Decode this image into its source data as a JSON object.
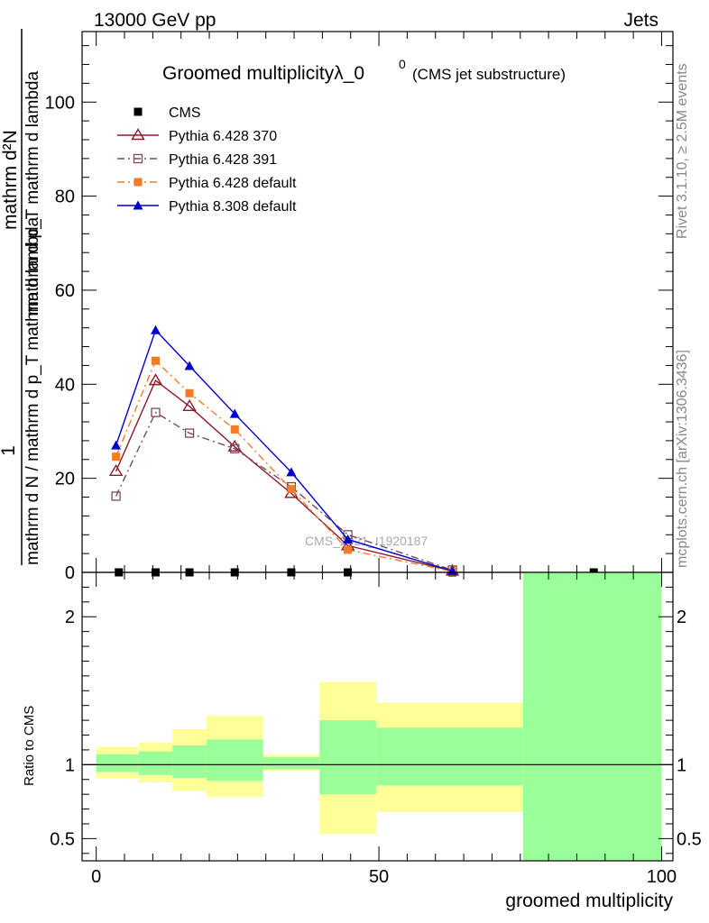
{
  "header": {
    "left": "13000 GeV pp",
    "right": "Jets"
  },
  "side_labels": {
    "rivet": "Rivet 3.1.10, ≥ 2.5M events",
    "mcplots": "mcplots.cern.ch [arXiv:1306.3436]"
  },
  "watermark": "CMS_2021_I1920187",
  "chart_data": [
    {
      "type": "line",
      "title_main": "Groomed multiplicityλ_0",
      "title_sup": "0",
      "title_sub": "(CMS jet substructure)",
      "ylabel_numerator": "1",
      "ylabel_denominator": "mathrm d N / mathrm d p_T mathrm d lambda",
      "ylabel_num_right": "mathrm d²N",
      "ylabel_den_right": "mathrm d p_T mathrm d lambda",
      "xlim": [
        -2.5,
        102
      ],
      "ylim": [
        0,
        115
      ],
      "yticks": [
        0,
        20,
        40,
        60,
        80,
        100
      ],
      "legend_position": "top-left",
      "series": [
        {
          "name": "CMS",
          "color": "#000000",
          "marker": "square-filled",
          "x": [
            4,
            10.5,
            16.5,
            24.5,
            34.5,
            44.5,
            63,
            88
          ],
          "y": [
            0,
            0,
            0,
            0,
            0,
            0,
            0,
            0
          ]
        },
        {
          "name": "Pythia 6.428 370",
          "color": "#8b1a2b",
          "marker": "triangle-open",
          "dash": "",
          "x": [
            3.5,
            10.5,
            16.5,
            24.5,
            34.5,
            44.5,
            63
          ],
          "y": [
            21.5,
            40.8,
            35.3,
            26.7,
            16.8,
            5.7,
            0.3
          ]
        },
        {
          "name": "Pythia 6.428 391",
          "color": "#7a4a5a",
          "marker": "square-open",
          "dash": "8,4,2,4",
          "x": [
            3.5,
            10.5,
            16.5,
            24.5,
            34.5,
            44.5,
            63
          ],
          "y": [
            16.2,
            34,
            29.6,
            26.3,
            18.2,
            8,
            0.5
          ]
        },
        {
          "name": "Pythia 6.428 default",
          "color": "#f27b2a",
          "marker": "square-filled",
          "dash": "8,4,2,4",
          "x": [
            3.5,
            10.5,
            16.5,
            24.5,
            34.5,
            44.5,
            63
          ],
          "y": [
            24.6,
            45,
            38.1,
            30.4,
            17.7,
            4.8,
            0.2
          ]
        },
        {
          "name": "Pythia 8.308 default",
          "color": "#0000cc",
          "marker": "triangle-filled",
          "dash": "",
          "x": [
            3.5,
            10.5,
            16.5,
            24.5,
            34.5,
            44.5,
            63
          ],
          "y": [
            27,
            51.5,
            43.9,
            33.7,
            21.3,
            7,
            0.3
          ]
        }
      ]
    },
    {
      "type": "area",
      "ylabel": "Ratio to CMS",
      "xlabel": "groomed multiplicity",
      "xlim": [
        -2.5,
        102
      ],
      "ylim": [
        0.35,
        2.3
      ],
      "yticks": [
        0.5,
        1,
        2
      ],
      "xticks": [
        0,
        50,
        100
      ],
      "reference_line": 1,
      "bands": [
        {
          "x0": 0,
          "x1": 7.5,
          "inner": [
            0.95,
            1.07
          ],
          "outer": [
            0.91,
            1.12
          ]
        },
        {
          "x0": 7.5,
          "x1": 13.5,
          "inner": [
            0.93,
            1.09
          ],
          "outer": [
            0.88,
            1.15
          ]
        },
        {
          "x0": 13.5,
          "x1": 19.5,
          "inner": [
            0.91,
            1.13
          ],
          "outer": [
            0.82,
            1.24
          ]
        },
        {
          "x0": 19.5,
          "x1": 29.5,
          "inner": [
            0.89,
            1.17
          ],
          "outer": [
            0.78,
            1.33
          ]
        },
        {
          "x0": 29.5,
          "x1": 39.5,
          "inner": [
            0.97,
            1.05
          ],
          "outer": [
            0.96,
            1.07
          ]
        },
        {
          "x0": 39.5,
          "x1": 49.5,
          "inner": [
            0.8,
            1.3
          ],
          "outer": [
            0.53,
            1.56
          ]
        },
        {
          "x0": 49.5,
          "x1": 75.5,
          "inner": [
            0.86,
            1.25
          ],
          "outer": [
            0.68,
            1.42
          ]
        },
        {
          "x0": 75.5,
          "x1": 100,
          "inner": [
            0.35,
            2.3
          ],
          "outer": [
            0.35,
            2.3
          ]
        }
      ],
      "colors": {
        "inner": "#99ff99",
        "outer": "#ffff99"
      }
    }
  ]
}
